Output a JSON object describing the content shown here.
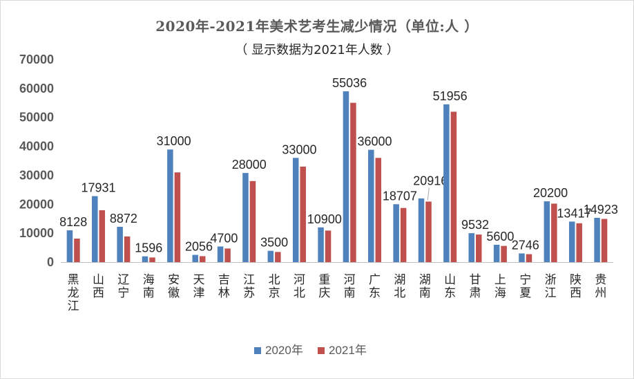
{
  "chart_data": {
    "type": "bar",
    "title": "2020年-2021年美术艺考生减少情况（单位:人 ）",
    "subtitle": "（ 显示数据为2021年人数 ）",
    "categories": [
      "黑龙江",
      "山西",
      "辽宁",
      "海南",
      "安徽",
      "天津",
      "吉林",
      "江苏",
      "北京",
      "河北",
      "重庆",
      "河南",
      "广东",
      "湖北",
      "湖南",
      "山东",
      "甘肃",
      "上海",
      "宁夏",
      "浙江",
      "陕西",
      "贵州"
    ],
    "series": [
      {
        "name": "2020年",
        "color": "#4f81bd",
        "values": [
          11000,
          22800,
          12200,
          2000,
          38900,
          2500,
          5400,
          30800,
          3900,
          36000,
          12000,
          59000,
          38800,
          20000,
          22000,
          54500,
          10000,
          6000,
          3000,
          21000,
          14000,
          15300
        ]
      },
      {
        "name": "2021年",
        "color": "#c0504d",
        "values": [
          8128,
          17931,
          8872,
          1596,
          31000,
          2056,
          4700,
          28000,
          3500,
          33000,
          10900,
          55036,
          36000,
          18707,
          20916,
          51956,
          9532,
          5600,
          2746,
          20200,
          13417,
          14923
        ]
      }
    ],
    "data_labels": [
      "8128",
      "17931",
      "8872",
      "1596",
      "31000",
      "2056",
      "4700",
      "28000",
      "3500",
      "33000",
      "10900",
      "55036",
      "36000",
      "18707",
      "20916",
      "51956",
      "9532",
      "5600",
      "2746",
      "20200",
      "13417",
      "14923"
    ],
    "y_ticks": [
      "0",
      "10000",
      "20000",
      "30000",
      "40000",
      "50000",
      "60000",
      "70000"
    ],
    "ylim": [
      0,
      70000
    ],
    "grid": false,
    "legend_position": "bottom"
  }
}
